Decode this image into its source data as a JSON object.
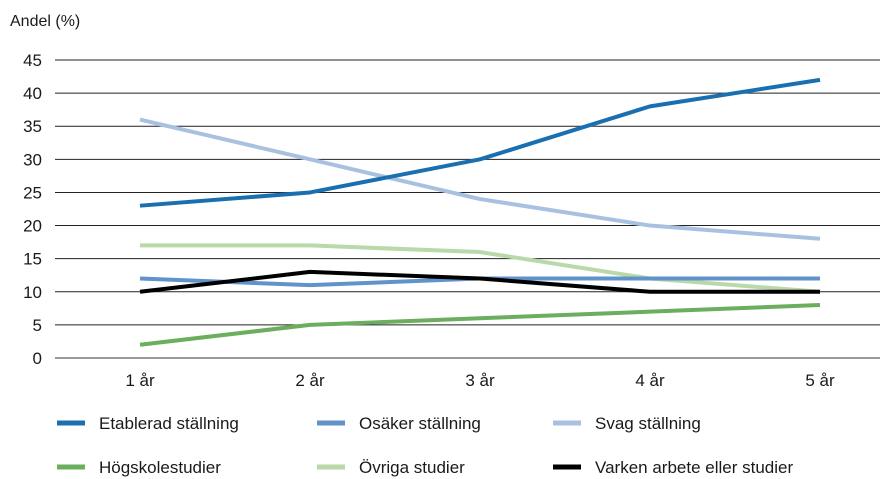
{
  "chart_data": {
    "type": "line",
    "ylabel": "Andel (%)",
    "xlabel": "",
    "ylim": [
      0,
      45
    ],
    "yticks": [
      0,
      5,
      10,
      15,
      20,
      25,
      30,
      35,
      40,
      45
    ],
    "categories": [
      "1 år",
      "2 år",
      "3 år",
      "4 år",
      "5 år"
    ],
    "grid": true,
    "legend_position": "bottom",
    "series": [
      {
        "name": "Etablerad ställning",
        "color": "#1a6fb0",
        "values": [
          23,
          25,
          30,
          38,
          42
        ]
      },
      {
        "name": "Osäker ställning",
        "color": "#5f93c9",
        "values": [
          12,
          11,
          12,
          12,
          12
        ]
      },
      {
        "name": "Svag ställning",
        "color": "#a9c1e1",
        "values": [
          36,
          30,
          24,
          20,
          18
        ]
      },
      {
        "name": "Högskolestudier",
        "color": "#6aae5e",
        "values": [
          2,
          5,
          6,
          7,
          8
        ]
      },
      {
        "name": "Övriga studier",
        "color": "#b9d9a8",
        "values": [
          17,
          17,
          16,
          12,
          10
        ]
      },
      {
        "name": "Varken arbete eller studier",
        "color": "#000000",
        "values": [
          10,
          13,
          12,
          10,
          10
        ]
      }
    ]
  }
}
